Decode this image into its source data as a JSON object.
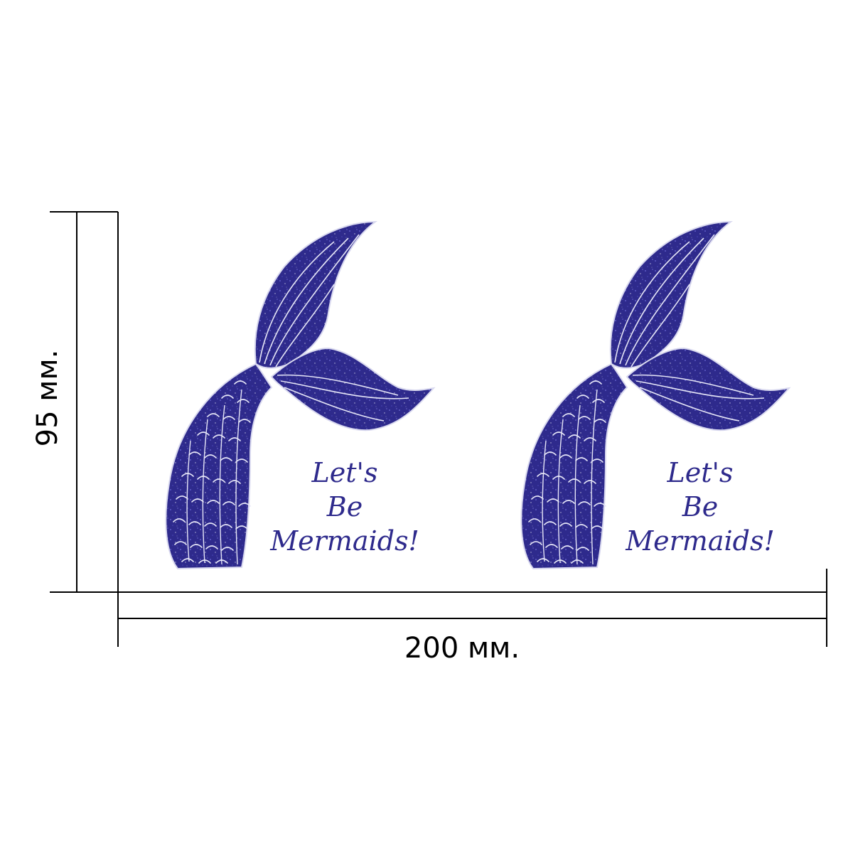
{
  "dimensions": {
    "width_label": "200 мм.",
    "height_label": "95 мм."
  },
  "stickers": [
    {
      "line1": "Let's",
      "line2": "Be",
      "line3": "Mermaids!",
      "icon": "mermaid-tail-icon"
    },
    {
      "line1": "Let's",
      "line2": "Be",
      "line3": "Mermaids!",
      "icon": "mermaid-tail-icon"
    }
  ],
  "colors": {
    "glitter": "#2e2a8c",
    "glitter_highlight": "#5a56c8",
    "line": "#000000",
    "background": "#ffffff"
  }
}
